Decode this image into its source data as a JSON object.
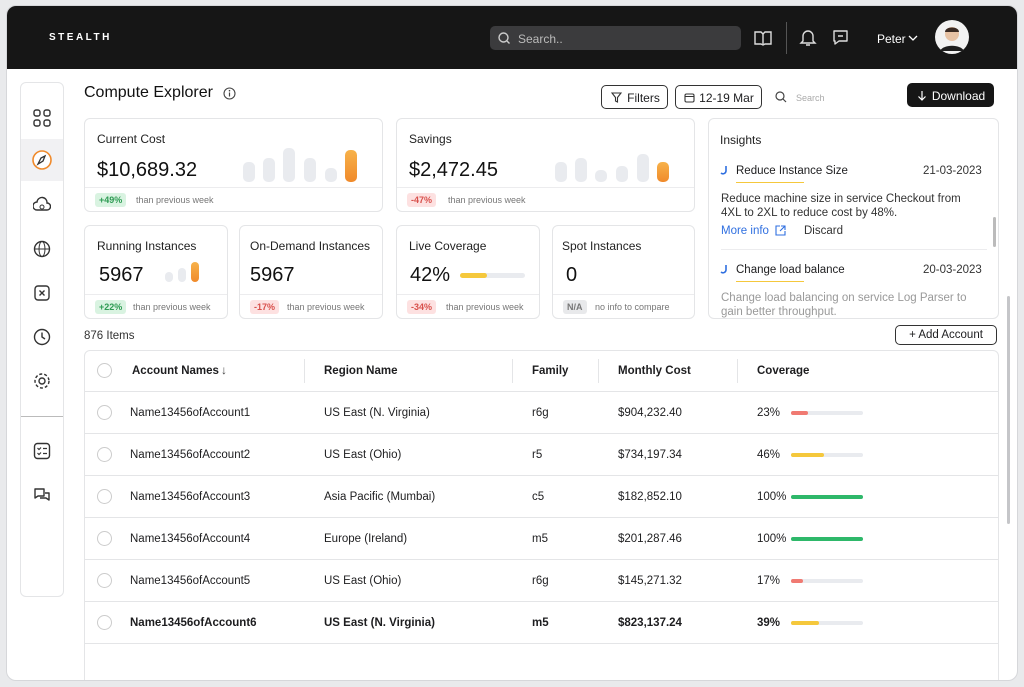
{
  "header": {
    "brand": "STEALTH",
    "search_placeholder": "Search..",
    "user": "Peter"
  },
  "page": {
    "title": "Compute Explorer",
    "filters": "Filters",
    "date_range": "12-19 Mar",
    "search_placeholder": "Search",
    "download": "Download"
  },
  "cards": [
    {
      "title": "Current Cost",
      "value": "$10,689.32",
      "change": "+49%",
      "note": "than previous week"
    },
    {
      "title": "Savings",
      "value": "$2,472.45",
      "change": "-47%",
      "note": "than previous week"
    },
    {
      "title": "Running Instances",
      "value": "5967",
      "change": "+22%",
      "note": "than previous week"
    },
    {
      "title": "On-Demand Instances",
      "value": "5967",
      "change": "-17%",
      "note": "than previous week"
    },
    {
      "title": "Live Coverage",
      "value": {
        "value": 42,
        "label": "42%"
      },
      "change": "-34%",
      "note": "than previous week"
    },
    {
      "title": "Spot Instances",
      "value": "0",
      "change": "N/A",
      "note": "no info to compare"
    }
  ],
  "insights": {
    "title": "Insights",
    "items": [
      {
        "title": "Reduce Instance Size",
        "date": "21-03-2023",
        "text": "Reduce machine size in service Checkout from 4XL to 2XL to reduce cost by 48%.",
        "more": "More info",
        "discard": "Discard"
      },
      {
        "title": "Change load balance",
        "date": "20-03-2023",
        "text": "Change load balancing on service Log Parser to gain better throughput."
      }
    ]
  },
  "table": {
    "count": "876 Items",
    "add": "Add Account",
    "columns": [
      "Account Names",
      "Region Name",
      "Family",
      "Monthly Cost",
      "Coverage"
    ],
    "rows": [
      [
        "Name13456ofAccount1",
        "US East (N. Virginia)",
        "r6g",
        "$904,232.40",
        {
          "value": 23,
          "label": "23%",
          "color": "#f07a72"
        }
      ],
      [
        "Name13456ofAccount2",
        "US East (Ohio)",
        "r5",
        "$734,197.34",
        {
          "value": 46,
          "label": "46%",
          "color": "#f5c83c"
        }
      ],
      [
        "Name13456ofAccount3",
        "Asia Pacific (Mumbai)",
        "c5",
        "$182,852.10",
        {
          "value": 100,
          "label": "100%",
          "color": "#2eb86a"
        }
      ],
      [
        "Name13456ofAccount4",
        "Europe (Ireland)",
        "m5",
        "$201,287.46",
        {
          "value": 100,
          "label": "100%",
          "color": "#2eb86a"
        }
      ],
      [
        "Name13456ofAccount5",
        "US East (Ohio)",
        "r6g",
        "$145,271.32",
        {
          "value": 17,
          "label": "17%",
          "color": "#f07a72"
        }
      ],
      [
        "Name13456ofAccount6",
        "US East (N. Virginia)",
        "m5",
        "$823,137.24",
        {
          "value": 39,
          "label": "39%",
          "color": "#f5c83c"
        }
      ]
    ]
  }
}
